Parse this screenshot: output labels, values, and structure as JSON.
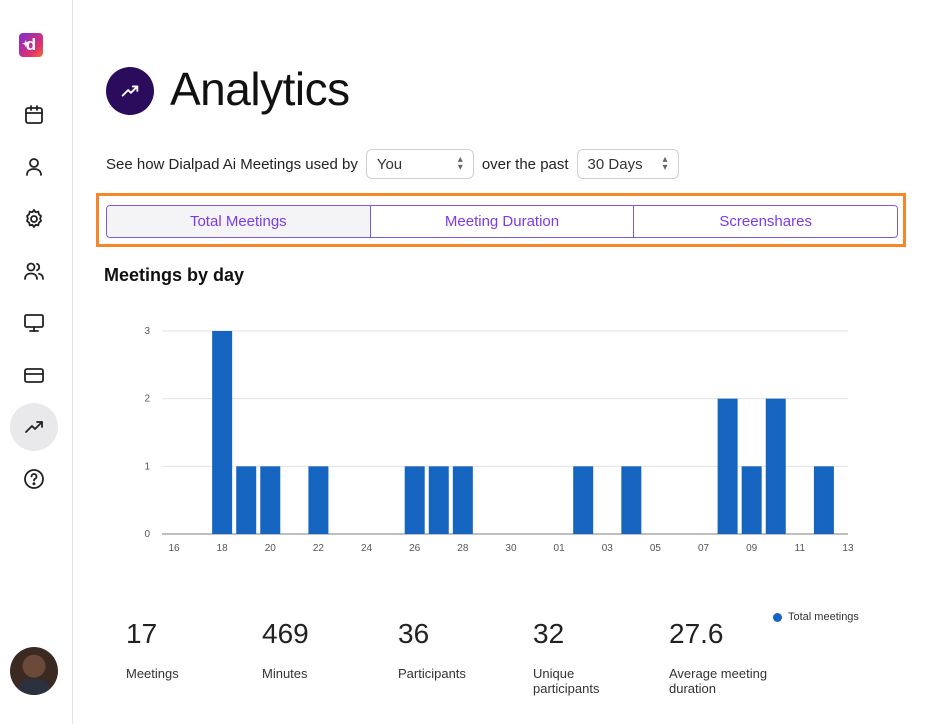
{
  "sidebar": {
    "logo_letter": "d",
    "items": [
      {
        "icon": "calendar-icon"
      },
      {
        "icon": "user-icon"
      },
      {
        "icon": "gear-icon"
      },
      {
        "icon": "users-icon"
      },
      {
        "icon": "monitor-icon"
      },
      {
        "icon": "credit-card-icon"
      },
      {
        "icon": "trending-up-icon",
        "active": true
      },
      {
        "icon": "help-icon"
      }
    ],
    "avatar": "user-avatar"
  },
  "header": {
    "title": "Analytics",
    "icon": "trending-up-icon"
  },
  "filters": {
    "prefix": "See how Dialpad Ai Meetings used by",
    "scope_value": "You",
    "middle": "over the past",
    "range_value": "30 Days"
  },
  "tabs": [
    {
      "label": "Total Meetings",
      "selected": true
    },
    {
      "label": "Meeting Duration",
      "selected": false
    },
    {
      "label": "Screenshares",
      "selected": false
    }
  ],
  "section_title": "Meetings by day",
  "chart_data": {
    "type": "bar",
    "series": [
      {
        "name": "Total meetings",
        "color": "#1565c0",
        "values": [
          0,
          0,
          3,
          1,
          1,
          0,
          1,
          0,
          0,
          0,
          1,
          1,
          1,
          0,
          0,
          0,
          0,
          1,
          0,
          1,
          0,
          0,
          0,
          2,
          1,
          2,
          0,
          1,
          0
        ]
      }
    ],
    "categories": [
      "16",
      "17",
      "18",
      "19",
      "20",
      "21",
      "22",
      "23",
      "24",
      "25",
      "26",
      "27",
      "28",
      "29",
      "30",
      "31",
      "01",
      "02",
      "03",
      "04",
      "05",
      "06",
      "07",
      "08",
      "09",
      "10",
      "11",
      "12",
      "13"
    ],
    "tick_labels": [
      "16",
      "18",
      "20",
      "22",
      "24",
      "26",
      "28",
      "30",
      "01",
      "03",
      "05",
      "07",
      "09",
      "11",
      "13"
    ],
    "ylim": [
      0,
      3
    ],
    "yticks": [
      "0",
      "1",
      "2",
      "3"
    ],
    "grid": true,
    "legend_position": "bottom-right"
  },
  "legend_label": "Total meetings",
  "stats": [
    {
      "value": "17",
      "label": "Meetings"
    },
    {
      "value": "469",
      "label": "Minutes"
    },
    {
      "value": "36",
      "label": "Participants"
    },
    {
      "value": "32",
      "label": "Unique participants"
    },
    {
      "value": "27.6",
      "label": "Average meeting duration"
    }
  ]
}
